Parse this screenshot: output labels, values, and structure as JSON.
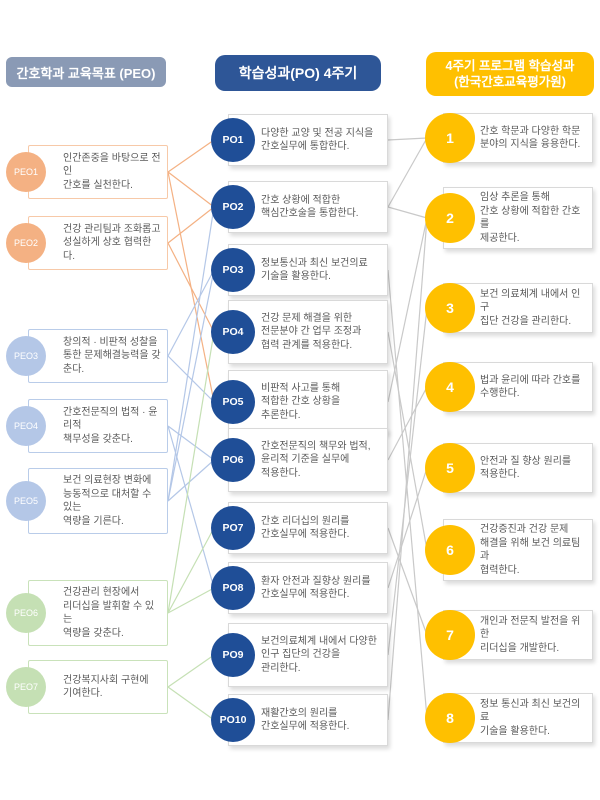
{
  "headers": {
    "peo": "간호학과 교육목표 (PEO)",
    "po": "학습성과(PO) 4주기",
    "kabone_line1": "4주기 프로그램 학습성과",
    "kabone_line2": "(한국간호교육평가원)"
  },
  "peo_items": [
    {
      "id": "PEO1",
      "label": "PEO1",
      "group": "peach",
      "text": "인간존중을 바탕으로 전인\n간호를 실천한다."
    },
    {
      "id": "PEO2",
      "label": "PEO2",
      "group": "peach",
      "text": "건강 관리팀과 조화롭고\n성실하게 상호 협력한다."
    },
    {
      "id": "PEO3",
      "label": "PEO3",
      "group": "blue",
      "text": "창의적 · 비판적 성찰을\n통한 문제해결능력을 갖춘다."
    },
    {
      "id": "PEO4",
      "label": "PEO4",
      "group": "blue",
      "text": "간호전문직의 법적 · 윤리적\n책무성을 갖춘다."
    },
    {
      "id": "PEO5",
      "label": "PEO5",
      "group": "blue",
      "text": "보건 의료현장 변화에\n능동적으로 대처할 수 있는\n역량을 기른다."
    },
    {
      "id": "PEO6",
      "label": "PEO6",
      "group": "green",
      "text": "건강관리 현장에서\n리더십을 발휘할 수 있는\n역량을 갖춘다."
    },
    {
      "id": "PEO7",
      "label": "PEO7",
      "group": "green",
      "text": "건강복지사회 구현에\n기여한다."
    }
  ],
  "po_items": [
    {
      "id": "PO1",
      "label": "PO1",
      "text": "다양한 교양 및 전공 지식을\n간호실무에 통합한다."
    },
    {
      "id": "PO2",
      "label": "PO2",
      "text": "간호 상황에 적합한\n핵심간호술을 통합한다."
    },
    {
      "id": "PO3",
      "label": "PO3",
      "text": "정보통신과 최신 보건의료\n기술을 활용한다."
    },
    {
      "id": "PO4",
      "label": "PO4",
      "text": "건강 문제 해결을 위한\n전문분야 간 업무 조정과\n협력 관계를 적용한다."
    },
    {
      "id": "PO5",
      "label": "PO5",
      "text": "비판적 사고를 통해\n적합한 간호 상황을\n추론한다."
    },
    {
      "id": "PO6",
      "label": "PO6",
      "text": "간호전문직의 책무와 법적,\n윤리적 기준을 실무에\n적용한다."
    },
    {
      "id": "PO7",
      "label": "PO7",
      "text": "간호 리더십의 원리를\n간호실무에 적용한다."
    },
    {
      "id": "PO8",
      "label": "PO8",
      "text": "환자 안전과 질향상 원리를\n간호실무에 적용한다."
    },
    {
      "id": "PO9",
      "label": "PO9",
      "text": "보건의료체계 내에서 다양한\n인구 집단의 건강을\n관리한다."
    },
    {
      "id": "PO10",
      "label": "PO10",
      "text": "재활간호의 원리를\n간호실무에 적용한다."
    }
  ],
  "kabone_items": [
    {
      "id": "1",
      "label": "1",
      "text": "간호 학문과 다양한 학문\n분야의 지식을 융용한다."
    },
    {
      "id": "2",
      "label": "2",
      "text": "임상 추론을 통해\n간호 상황에 적합한 간호를\n제공한다."
    },
    {
      "id": "3",
      "label": "3",
      "text": "보건 의료체계 내에서 인구\n집단 건강을 관리한다."
    },
    {
      "id": "4",
      "label": "4",
      "text": "법과 윤리에 따라 간호를\n수행한다."
    },
    {
      "id": "5",
      "label": "5",
      "text": "안전과 질 향상 원리를\n적용한다."
    },
    {
      "id": "6",
      "label": "6",
      "text": "건강증진과 건강 문제\n해결을 위해 보건 의료팀과\n협력한다."
    },
    {
      "id": "7",
      "label": "7",
      "text": "개인과 전문직 발전을 위한\n리더십을 개발한다."
    },
    {
      "id": "8",
      "label": "8",
      "text": "정보 통신과 최신 보건의료\n기술을 활용한다."
    }
  ],
  "connections": {
    "peo_to_po": [
      [
        "PEO1",
        "PO1"
      ],
      [
        "PEO1",
        "PO2"
      ],
      [
        "PEO1",
        "PO5"
      ],
      [
        "PEO2",
        "PO2"
      ],
      [
        "PEO2",
        "PO4"
      ],
      [
        "PEO3",
        "PO3"
      ],
      [
        "PEO3",
        "PO5"
      ],
      [
        "PEO4",
        "PO6"
      ],
      [
        "PEO4",
        "PO8"
      ],
      [
        "PEO5",
        "PO2"
      ],
      [
        "PEO5",
        "PO3"
      ],
      [
        "PEO5",
        "PO6"
      ],
      [
        "PEO6",
        "PO4"
      ],
      [
        "PEO6",
        "PO7"
      ],
      [
        "PEO6",
        "PO8"
      ],
      [
        "PEO7",
        "PO9"
      ],
      [
        "PEO7",
        "PO10"
      ]
    ],
    "po_to_kabone": [
      [
        "PO1",
        "1"
      ],
      [
        "PO2",
        "1"
      ],
      [
        "PO2",
        "2"
      ],
      [
        "PO3",
        "8"
      ],
      [
        "PO4",
        "6"
      ],
      [
        "PO5",
        "2"
      ],
      [
        "PO6",
        "4"
      ],
      [
        "PO7",
        "7"
      ],
      [
        "PO8",
        "5"
      ],
      [
        "PO9",
        "3"
      ],
      [
        "PO10",
        "2"
      ]
    ]
  },
  "colors": {
    "header_peo_bg": "#8A9AB5",
    "header_po_bg": "#2E5697",
    "header_kabone_bg": "#FFC000",
    "peach_circle": "#F4B183",
    "peach_border": "#F7C9A8",
    "blue_circle": "#B4C7E7",
    "blue_border": "#B9CCE9",
    "green_circle": "#C5E0B4",
    "green_border": "#C9E2BA",
    "po_circle": "#1F4E97",
    "kabone_circle": "#FFC000",
    "wire_gray": "#C9C9C9",
    "box_border_gray": "#D9D9D9",
    "body_text": "#595959"
  }
}
